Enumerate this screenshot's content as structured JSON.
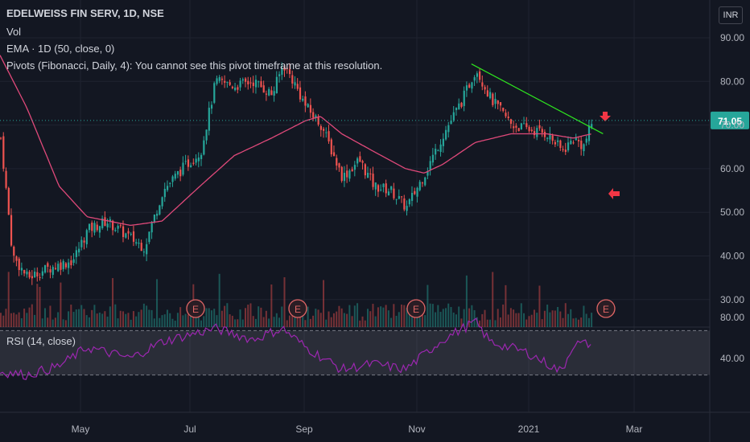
{
  "header": {
    "symbol": "EDELWEISS FIN SERV, 1D, NSE",
    "vol_label": "Vol",
    "ema_label": "EMA · 1D (50, close, 0)",
    "pivots_label": "Pivots (Fibonacci, Daily, 4): You cannot see this pivot timeframe at this resolution.",
    "currency": "INR"
  },
  "rsi_panel": {
    "label": "RSI (14, close)",
    "levels": [
      70,
      30
    ],
    "ticks": [
      "80.00",
      "40.00"
    ]
  },
  "colors": {
    "background": "#131722",
    "up": "#26a69a",
    "down": "#ef5350",
    "ema": "#e0497a",
    "rsi": "#9c27b0",
    "trendline": "#2ee51f",
    "price_badge": "#26a69a",
    "arrow": "#f23645",
    "earnings": "#e06666"
  },
  "chart_data": {
    "type": "candlestick",
    "price_axis": {
      "ticks": [
        "90.00",
        "80.00",
        "70.00",
        "60.00",
        "50.00",
        "40.00",
        "30.00"
      ]
    },
    "time_axis": {
      "ticks": [
        "May",
        "Jul",
        "Sep",
        "Nov",
        "2021",
        "Mar"
      ]
    },
    "last_price": "71.05",
    "earnings_markers": [
      "E",
      "E",
      "E",
      "E"
    ],
    "price_path_keypoints": [
      {
        "t": "Mar 30",
        "close": 67
      },
      {
        "t": "Apr 06",
        "close": 40
      },
      {
        "t": "Apr 14",
        "close": 35
      },
      {
        "t": "Apr 24",
        "close": 37
      },
      {
        "t": "May 08",
        "close": 39
      },
      {
        "t": "May 16",
        "close": 46
      },
      {
        "t": "May 26",
        "close": 48
      },
      {
        "t": "Jun 09",
        "close": 44
      },
      {
        "t": "Jun 16",
        "close": 42
      },
      {
        "t": "Jun 26",
        "close": 55
      },
      {
        "t": "Jul 06",
        "close": 60
      },
      {
        "t": "Jul 16",
        "close": 64
      },
      {
        "t": "Jul 24",
        "close": 80
      },
      {
        "t": "Aug 04",
        "close": 79
      },
      {
        "t": "Aug 14",
        "close": 80
      },
      {
        "t": "Aug 24",
        "close": 77
      },
      {
        "t": "Aug 30",
        "close": 84
      },
      {
        "t": "Sep 05",
        "close": 80
      },
      {
        "t": "Sep 12",
        "close": 74
      },
      {
        "t": "Sep 20",
        "close": 70
      },
      {
        "t": "Oct 01",
        "close": 58
      },
      {
        "t": "Oct 10",
        "close": 62
      },
      {
        "t": "Oct 18",
        "close": 56
      },
      {
        "t": "Oct 27",
        "close": 55
      },
      {
        "t": "Nov 05",
        "close": 51
      },
      {
        "t": "Nov 15",
        "close": 59
      },
      {
        "t": "Nov 25",
        "close": 68
      },
      {
        "t": "Dec 05",
        "close": 76
      },
      {
        "t": "Dec 12",
        "close": 83
      },
      {
        "t": "Dec 20",
        "close": 76
      },
      {
        "t": "Jan 01",
        "close": 70
      },
      {
        "t": "Jan 10",
        "close": 69
      },
      {
        "t": "Jan 20",
        "close": 68
      },
      {
        "t": "Jan 28",
        "close": 64
      },
      {
        "t": "Feb 04",
        "close": 67
      },
      {
        "t": "Feb 09",
        "close": 65
      },
      {
        "t": "Feb 14",
        "close": 71
      }
    ],
    "ema50_keypoints": [
      {
        "t": "Mar 30",
        "value": 86
      },
      {
        "t": "Apr 14",
        "value": 74
      },
      {
        "t": "May 01",
        "value": 56
      },
      {
        "t": "May 16",
        "value": 49
      },
      {
        "t": "Jun 09",
        "value": 47
      },
      {
        "t": "Jun 26",
        "value": 48
      },
      {
        "t": "Jul 16",
        "value": 56
      },
      {
        "t": "Aug 04",
        "value": 63
      },
      {
        "t": "Aug 24",
        "value": 67
      },
      {
        "t": "Sep 12",
        "value": 71
      },
      {
        "t": "Sep 20",
        "value": 72
      },
      {
        "t": "Oct 01",
        "value": 68
      },
      {
        "t": "Oct 18",
        "value": 64
      },
      {
        "t": "Nov 05",
        "value": 60
      },
      {
        "t": "Nov 15",
        "value": 59
      },
      {
        "t": "Nov 25",
        "value": 61
      },
      {
        "t": "Dec 12",
        "value": 66
      },
      {
        "t": "Jan 01",
        "value": 68
      },
      {
        "t": "Jan 20",
        "value": 68
      },
      {
        "t": "Feb 04",
        "value": 67
      },
      {
        "t": "Feb 14",
        "value": 68
      }
    ],
    "trendline": [
      {
        "t": "Dec 10",
        "price": 84
      },
      {
        "t": "Feb 20",
        "price": 68
      }
    ],
    "rsi_keypoints": [
      {
        "t": "Mar 30",
        "value": 33
      },
      {
        "t": "Apr 14",
        "value": 30
      },
      {
        "t": "May 01",
        "value": 38
      },
      {
        "t": "May 16",
        "value": 55
      },
      {
        "t": "Jun 09",
        "value": 45
      },
      {
        "t": "Jun 26",
        "value": 60
      },
      {
        "t": "Jul 24",
        "value": 72
      },
      {
        "t": "Aug 14",
        "value": 62
      },
      {
        "t": "Aug 30",
        "value": 72
      },
      {
        "t": "Sep 12",
        "value": 55
      },
      {
        "t": "Oct 01",
        "value": 35
      },
      {
        "t": "Oct 18",
        "value": 40
      },
      {
        "t": "Nov 05",
        "value": 35
      },
      {
        "t": "Nov 25",
        "value": 62
      },
      {
        "t": "Dec 12",
        "value": 78
      },
      {
        "t": "Dec 20",
        "value": 60
      },
      {
        "t": "Jan 10",
        "value": 50
      },
      {
        "t": "Jan 28",
        "value": 33
      },
      {
        "t": "Feb 04",
        "value": 58
      },
      {
        "t": "Feb 14",
        "value": 58
      }
    ]
  }
}
